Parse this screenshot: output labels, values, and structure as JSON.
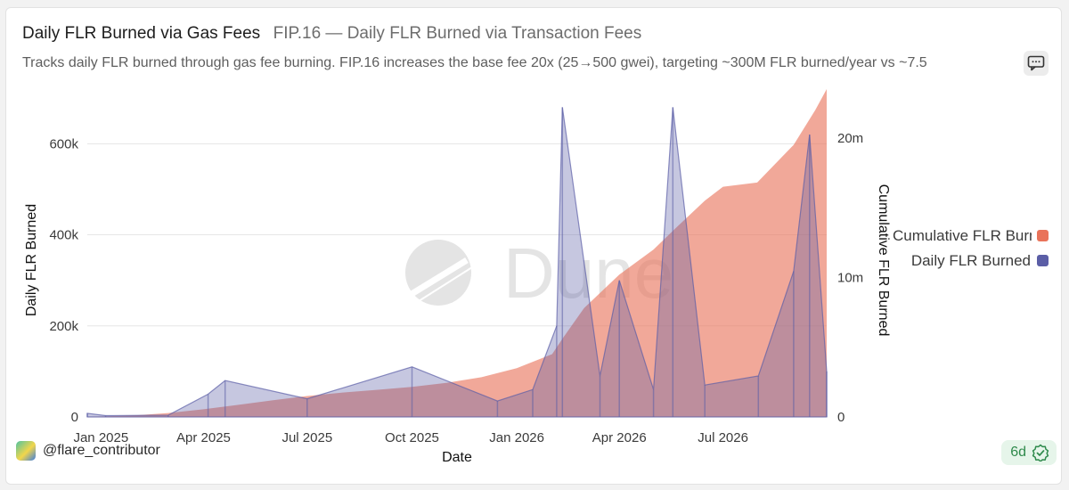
{
  "header": {
    "title": "Daily FLR Burned via Gas Fees",
    "subtitle": "FIP.16 — Daily FLR Burned via Transaction Fees",
    "description": "Tracks daily FLR burned through gas fee burning. FIP.16 increases the base fee 20x (25→500 gwei), targeting ~300M FLR burned/year vs ~7.5"
  },
  "author": {
    "handle": "@flare_contributor"
  },
  "badge": {
    "label": "6d",
    "icon": "check-badge-icon",
    "color": "#2f8a4c"
  },
  "watermark": {
    "text": "Dune"
  },
  "icons": {
    "comment": "comment-icon"
  },
  "chart_data": {
    "type": "area",
    "xlabel": "Date",
    "ylabel_left": "Daily FLR Burned",
    "ylabel_right": "Cumulative FLR Burned",
    "x_ticks": [
      "Jan 2025",
      "Apr 2025",
      "Jul 2025",
      "Oct 2025",
      "Jan 2026",
      "Apr 2026",
      "Jul 2026"
    ],
    "x_range": [
      "2024-12-20",
      "2026-09-30"
    ],
    "y_left": {
      "ticks": [
        0,
        200000,
        400000,
        600000
      ],
      "tick_labels": [
        "0",
        "200k",
        "400k",
        "600k"
      ],
      "range": [
        0,
        720000
      ]
    },
    "y_right": {
      "ticks": [
        0,
        10000000,
        20000000
      ],
      "tick_labels": [
        "0",
        "10m",
        "20m"
      ],
      "range": [
        0,
        23500000
      ]
    },
    "grid": true,
    "legend_position": "right",
    "series": [
      {
        "name": "Cumulative FLR Burned",
        "axis": "right",
        "color": "#e9735a",
        "points": [
          [
            "2024-12-20",
            0
          ],
          [
            "2025-02-01",
            120000
          ],
          [
            "2025-03-01",
            280000
          ],
          [
            "2025-04-01",
            550000
          ],
          [
            "2025-05-01",
            860000
          ],
          [
            "2025-06-01",
            1200000
          ],
          [
            "2025-07-01",
            1500000
          ],
          [
            "2025-08-01",
            1750000
          ],
          [
            "2025-09-01",
            1950000
          ],
          [
            "2025-10-01",
            2150000
          ],
          [
            "2025-11-01",
            2450000
          ],
          [
            "2025-12-01",
            2850000
          ],
          [
            "2026-01-01",
            3500000
          ],
          [
            "2026-02-01",
            4500000
          ],
          [
            "2026-02-10",
            5600000
          ],
          [
            "2026-03-01",
            7800000
          ],
          [
            "2026-04-01",
            10200000
          ],
          [
            "2026-05-01",
            12000000
          ],
          [
            "2026-05-20",
            13500000
          ],
          [
            "2026-06-15",
            15500000
          ],
          [
            "2026-07-01",
            16500000
          ],
          [
            "2026-07-31",
            16800000
          ],
          [
            "2026-09-01",
            19500000
          ],
          [
            "2026-09-20",
            22000000
          ],
          [
            "2026-09-30",
            23500000
          ]
        ]
      },
      {
        "name": "Daily FLR Burned",
        "axis": "left",
        "color": "#5b5ea6",
        "points": [
          [
            "2024-12-20",
            8000
          ],
          [
            "2025-01-05",
            3000
          ],
          [
            "2025-03-01",
            4000
          ],
          [
            "2025-04-05",
            50000
          ],
          [
            "2025-04-20",
            80000
          ],
          [
            "2025-07-01",
            40000
          ],
          [
            "2025-10-01",
            110000
          ],
          [
            "2025-12-15",
            35000
          ],
          [
            "2026-01-15",
            60000
          ],
          [
            "2026-02-05",
            200000
          ],
          [
            "2026-02-10",
            680000
          ],
          [
            "2026-03-15",
            90000
          ],
          [
            "2026-04-01",
            300000
          ],
          [
            "2026-05-01",
            60000
          ],
          [
            "2026-05-18",
            680000
          ],
          [
            "2026-06-15",
            70000
          ],
          [
            "2026-08-01",
            90000
          ],
          [
            "2026-09-01",
            320000
          ],
          [
            "2026-09-15",
            620000
          ],
          [
            "2026-09-30",
            100000
          ]
        ]
      }
    ]
  }
}
